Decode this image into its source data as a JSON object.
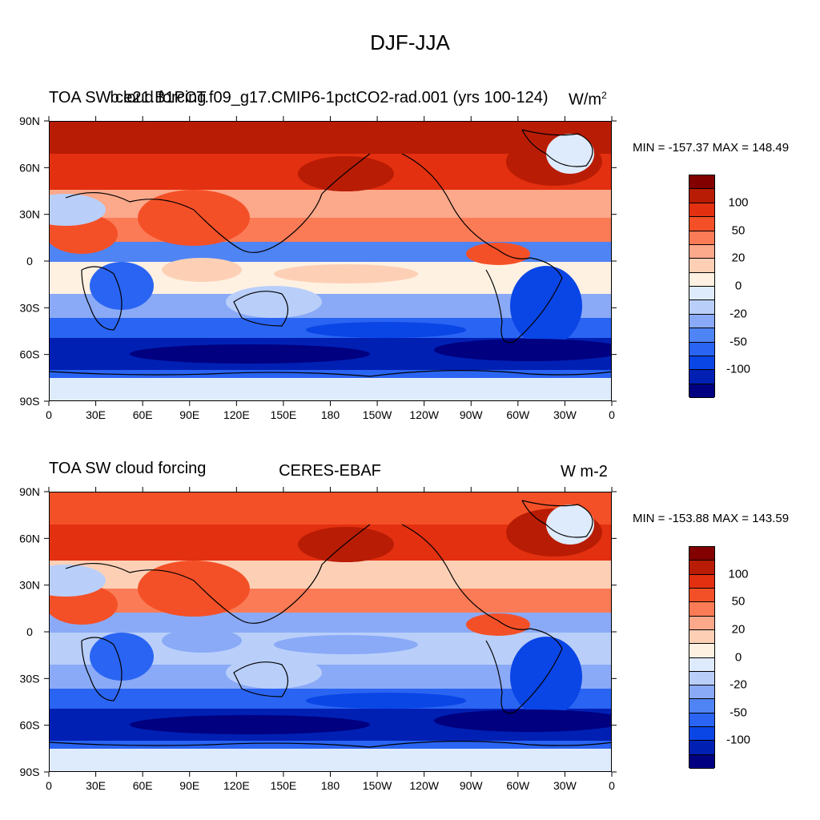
{
  "title": "DJF-JJA",
  "colorbar_colors": [
    "#000080",
    "#0020b4",
    "#0a45e6",
    "#2a64f2",
    "#4f84f5",
    "#8aaaf7",
    "#b9cffa",
    "#deebfc",
    "#fff1e2",
    "#fdd0b6",
    "#fca88a",
    "#fb7b56",
    "#f45027",
    "#e33010",
    "#b91c04",
    "#820000"
  ],
  "colorbar_labels": [
    "100",
    "50",
    "20",
    "0",
    "-20",
    "-50",
    "-100"
  ],
  "x_tick_labels": [
    "0",
    "30E",
    "60E",
    "90E",
    "120E",
    "150E",
    "180",
    "150W",
    "120W",
    "90W",
    "60W",
    "30W",
    "0"
  ],
  "y_tick_labels": [
    "90N",
    "60N",
    "30N",
    "0",
    "30S",
    "60S",
    "90S"
  ],
  "panels": [
    {
      "left_title": "TOA SW cloud forcing",
      "center_title": "b.e21.B1PCT.f09_g17.CMIP6-1pctCO2-rad.001 (yrs 100-124)",
      "right_title": "W/m",
      "right_title_sup": "2",
      "minmax": "MIN = -157.37 MAX = 148.49"
    },
    {
      "left_title": "TOA SW cloud forcing",
      "center_title": "CERES-EBAF",
      "right_title": "W m-2",
      "right_title_sup": "",
      "minmax": "MIN = -153.88 MAX = 143.59"
    }
  ]
}
